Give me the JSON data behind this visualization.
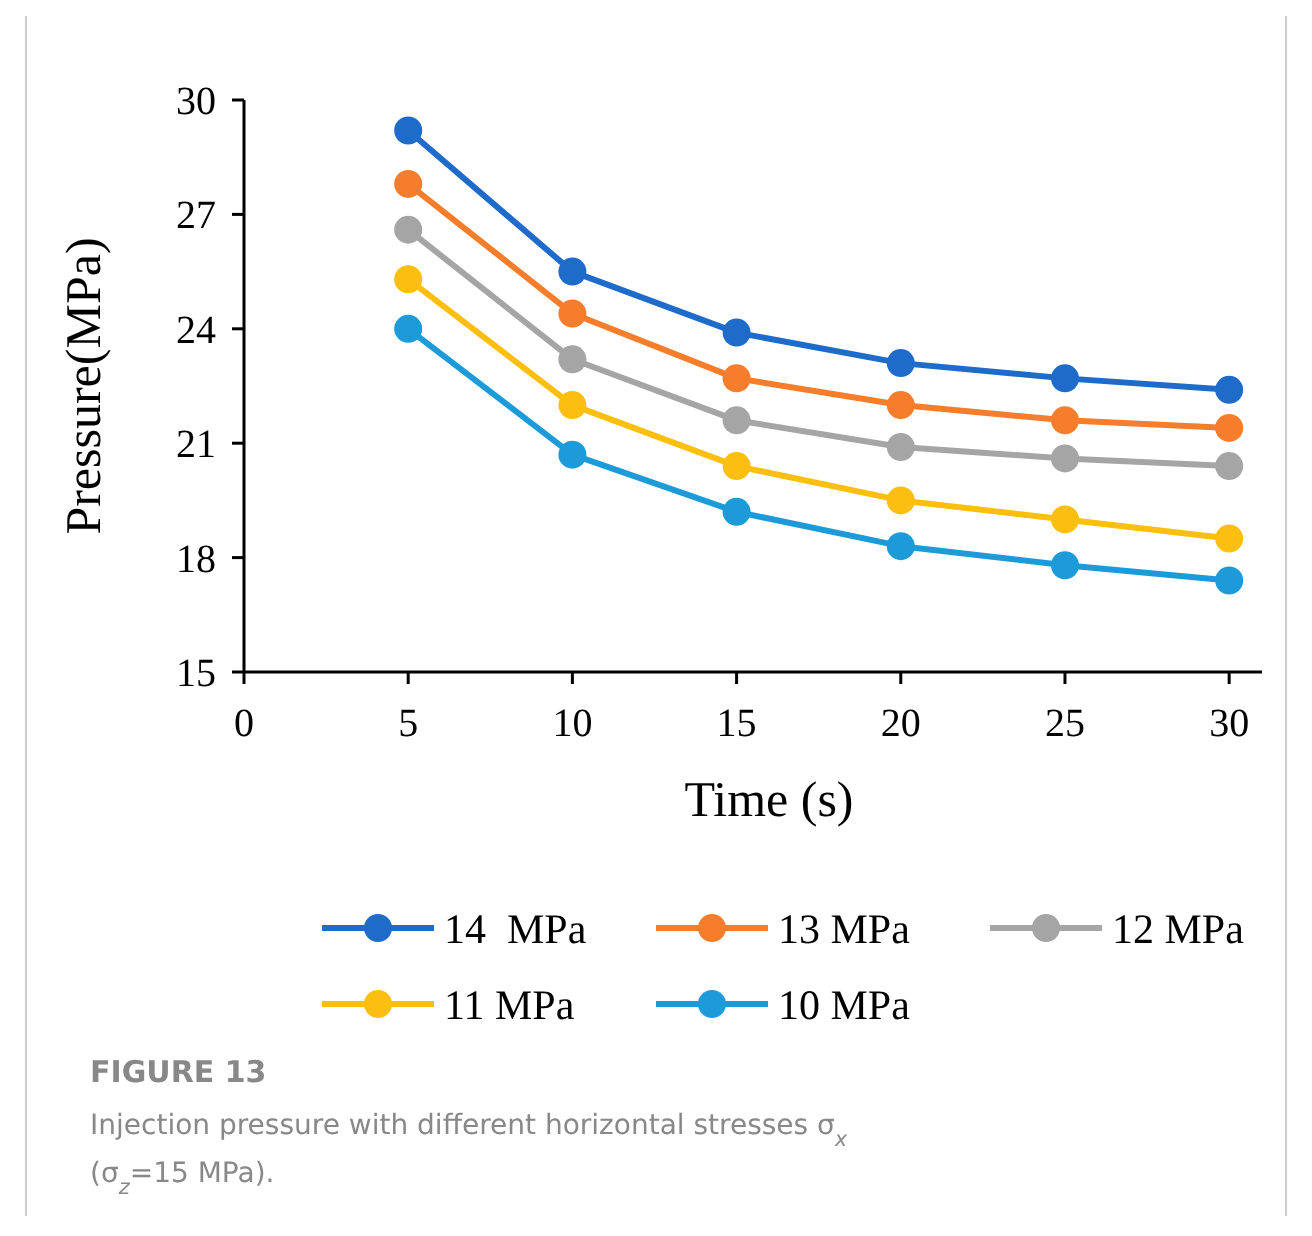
{
  "chart_data": {
    "type": "line",
    "xlabel": "Time (s)",
    "ylabel": "Pressure(MPa)",
    "x": [
      5,
      10,
      15,
      20,
      25,
      30
    ],
    "xlim": [
      0,
      31
    ],
    "xticks": [
      0,
      5,
      10,
      15,
      20,
      25,
      30
    ],
    "ylim": [
      15,
      30
    ],
    "yticks": [
      15,
      18,
      21,
      24,
      27,
      30
    ],
    "grid": false,
    "legend": "bottom",
    "marker": "circle",
    "line_style": "solid",
    "series": [
      {
        "name": "14  MPa",
        "color": "#1f6bc9",
        "values": [
          29.2,
          25.5,
          23.9,
          23.1,
          22.7,
          22.4
        ]
      },
      {
        "name": "13 MPa",
        "color": "#f57d2c",
        "values": [
          27.8,
          24.4,
          22.7,
          22.0,
          21.6,
          21.4
        ]
      },
      {
        "name": "12 MPa",
        "color": "#a5a5a5",
        "values": [
          26.6,
          23.2,
          21.6,
          20.9,
          20.6,
          20.4
        ]
      },
      {
        "name": "11 MPa",
        "color": "#fdbf0f",
        "values": [
          25.3,
          22.0,
          20.4,
          19.5,
          19.0,
          18.5
        ]
      },
      {
        "name": "10 MPa",
        "color": "#1d9bd8",
        "values": [
          24.0,
          20.7,
          19.2,
          18.3,
          17.8,
          17.4
        ]
      }
    ],
    "annotations": [
      "FIGURE 13",
      "Injection pressure with different horizontal stresses σ$_{x}$",
      "(σ$_{z}$=15 MPa)."
    ]
  }
}
